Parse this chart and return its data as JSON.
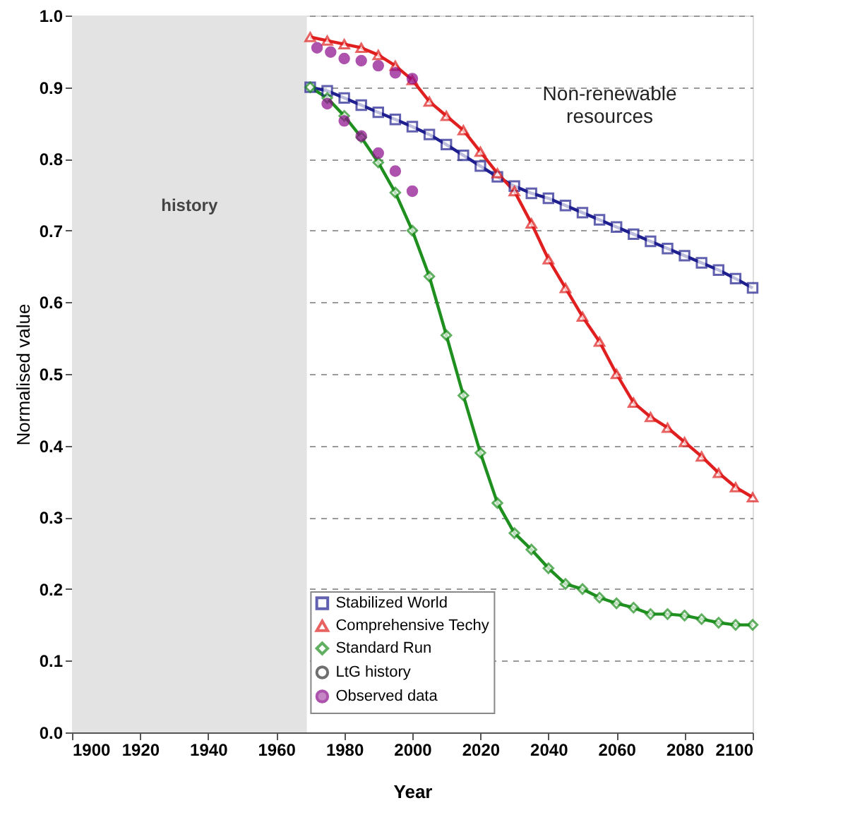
{
  "chart_data": {
    "type": "line",
    "xlabel": "Year",
    "ylabel": "Normalised value",
    "xlim": [
      1900,
      2100
    ],
    "xticks": [
      1900,
      1920,
      1940,
      1960,
      1980,
      2000,
      2020,
      2040,
      2060,
      2080,
      2100
    ],
    "ylim": [
      0,
      1.0
    ],
    "yticks": [
      {
        "value": 0,
        "label": "0.0"
      },
      0.1,
      0.2,
      0.3,
      0.4,
      0.5,
      0.6,
      0.7,
      0.8,
      0.9,
      {
        "value": 1,
        "label": "1.0"
      }
    ],
    "grid": "y",
    "legend": "bottom",
    "annotations": [
      "Non-renewable\nresources"
    ],
    "bands": [
      {
        "axis": "x",
        "from": 1900,
        "to": 1969,
        "label": "history",
        "color": "#e3e3e3"
      }
    ],
    "series": [
      {
        "name": "Stabilized World",
        "color": "#1f1f8f",
        "marker": "square",
        "x": [
          1970,
          1975,
          1980,
          1985,
          1990,
          1995,
          2000,
          2005,
          2010,
          2015,
          2020,
          2025,
          2030,
          2035,
          2040,
          2045,
          2050,
          2055,
          2060,
          2065,
          2070,
          2075,
          2080,
          2085,
          2090,
          2095,
          2100
        ],
        "values": [
          0.9,
          0.895,
          0.885,
          0.875,
          0.865,
          0.855,
          0.845,
          0.834,
          0.82,
          0.805,
          0.79,
          0.775,
          0.762,
          0.752,
          0.745,
          0.735,
          0.725,
          0.715,
          0.705,
          0.695,
          0.685,
          0.675,
          0.665,
          0.655,
          0.645,
          0.633,
          0.62
        ]
      },
      {
        "name": "Comprehensive Techy",
        "color": "#e02020",
        "marker": "triangle",
        "x": [
          1970,
          1975,
          1980,
          1985,
          1990,
          1995,
          2000,
          2005,
          2010,
          2015,
          2020,
          2025,
          2030,
          2035,
          2040,
          2045,
          2050,
          2055,
          2060,
          2065,
          2070,
          2075,
          2080,
          2085,
          2090,
          2095,
          2100
        ],
        "values": [
          0.97,
          0.965,
          0.96,
          0.955,
          0.945,
          0.93,
          0.91,
          0.88,
          0.86,
          0.84,
          0.81,
          0.78,
          0.755,
          0.71,
          0.66,
          0.62,
          0.58,
          0.545,
          0.5,
          0.46,
          0.44,
          0.425,
          0.405,
          0.385,
          0.362,
          0.342,
          0.328
        ]
      },
      {
        "name": "Standard Run",
        "color": "#1f8f1f",
        "marker": "diamond",
        "x": [
          1970,
          1975,
          1980,
          1985,
          1990,
          1995,
          2000,
          2005,
          2010,
          2015,
          2020,
          2025,
          2030,
          2035,
          2040,
          2045,
          2050,
          2055,
          2060,
          2065,
          2070,
          2075,
          2080,
          2085,
          2090,
          2095,
          2100
        ],
        "values": [
          0.9,
          0.885,
          0.86,
          0.83,
          0.795,
          0.753,
          0.7,
          0.636,
          0.554,
          0.47,
          0.39,
          0.32,
          0.278,
          0.255,
          0.229,
          0.207,
          0.2,
          0.188,
          0.18,
          0.174,
          0.165,
          0.165,
          0.163,
          0.158,
          0.153,
          0.15,
          0.15
        ]
      },
      {
        "name": "LtG history",
        "color": "#333333",
        "marker": "circle"
      },
      {
        "name": "Observed data",
        "color": "#8b0a8b",
        "marker": "circle",
        "type": "scatter",
        "x": [
          1972,
          1976,
          1980,
          1985,
          1990,
          1995,
          2000,
          1975,
          1980,
          1985,
          1990,
          1995,
          2000
        ],
        "values": [
          0.955,
          0.949,
          0.94,
          0.937,
          0.93,
          0.92,
          0.912,
          0.877,
          0.853,
          0.832,
          0.808,
          0.783,
          0.755
        ]
      }
    ]
  }
}
